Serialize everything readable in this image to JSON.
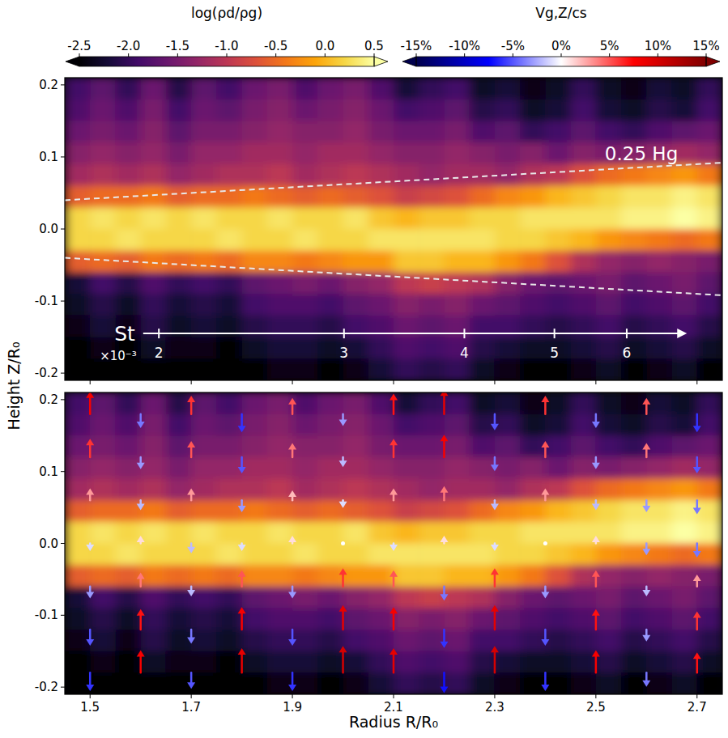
{
  "chart_data": {
    "type": "heatmap",
    "x_label": "Radius R/R₀",
    "y_label": "Height Z/R₀",
    "xlim": [
      1.45,
      2.75
    ],
    "ylim": [
      -0.21,
      0.21
    ],
    "xticks": [
      1.5,
      1.7,
      1.9,
      2.1,
      2.3,
      2.5,
      2.7
    ],
    "yticks": [
      -0.2,
      -0.1,
      {
        "value": 0,
        "label": "0.0"
      },
      0.1,
      0.2
    ],
    "x_edges": [
      1.45,
      1.5,
      1.55,
      1.6,
      1.65,
      1.7,
      1.75,
      1.8,
      1.85,
      1.9,
      1.95,
      2.0,
      2.05,
      2.1,
      2.15,
      2.2,
      2.25,
      2.3,
      2.35,
      2.4,
      2.45,
      2.5,
      2.55,
      2.6,
      2.65,
      2.7,
      2.75
    ],
    "z_edges": [
      0.21,
      0.18,
      0.15,
      0.12,
      0.09,
      0.06,
      0.03,
      0.0,
      -0.03,
      -0.06,
      -0.09,
      -0.12,
      -0.15,
      -0.18,
      -0.21
    ],
    "values": [
      [
        -1.9,
        -1.7,
        -2.0,
        -1.6,
        -2.1,
        -1.7,
        -1.9,
        -1.6,
        -1.5,
        -1.8,
        -1.6,
        -1.5,
        -1.8,
        -2.2,
        -2.0,
        -1.9,
        -2.3,
        -2.2,
        -2.4,
        -2.3,
        -2.0,
        -2.3,
        -2.4,
        -2.2,
        -2.3,
        -2.0
      ],
      [
        -1.8,
        -1.6,
        -1.8,
        -1.5,
        -1.9,
        -1.6,
        -1.7,
        -1.5,
        -1.4,
        -1.6,
        -1.5,
        -1.4,
        -1.6,
        -1.9,
        -1.8,
        -1.7,
        -2.1,
        -2.0,
        -2.3,
        -2.2,
        -1.9,
        -2.2,
        -2.3,
        -2.1,
        -2.2,
        -1.9
      ],
      [
        -1.6,
        -1.5,
        -1.6,
        -1.4,
        -1.7,
        -1.5,
        -1.5,
        -1.4,
        -1.3,
        -1.4,
        -1.4,
        -1.3,
        -1.5,
        -1.6,
        -1.6,
        -1.5,
        -1.8,
        -1.7,
        -2.0,
        -1.9,
        -1.7,
        -1.9,
        -2.0,
        -1.8,
        -1.7,
        -1.6
      ],
      [
        -1.4,
        -1.3,
        -1.4,
        -1.3,
        -1.5,
        -1.3,
        -1.3,
        -1.2,
        -1.2,
        -1.3,
        -1.2,
        -1.2,
        -1.3,
        -1.4,
        -1.4,
        -1.3,
        -1.4,
        -1.5,
        -1.4,
        -1.6,
        -1.4,
        -1.5,
        -1.4,
        -1.3,
        -1.2,
        -1.3
      ],
      [
        -1.2,
        -1.1,
        -1.2,
        -1.1,
        -1.3,
        -1.2,
        -1.1,
        -1.1,
        -1.0,
        -1.2,
        -1.1,
        -1.0,
        -1.1,
        -1.2,
        -1.3,
        -1.2,
        -1.2,
        -1.3,
        -1.1,
        -1.0,
        -0.7,
        -0.5,
        -0.4,
        -0.3,
        -0.2,
        -0.4
      ],
      [
        -0.6,
        -0.5,
        -0.5,
        -0.4,
        -0.6,
        -0.5,
        -0.5,
        -0.4,
        -0.5,
        -0.6,
        -0.5,
        -0.6,
        -0.7,
        -0.9,
        -0.8,
        -0.7,
        -0.5,
        -0.3,
        -0.2,
        0.0,
        0.1,
        0.2,
        0.3,
        0.3,
        0.4,
        0.3
      ],
      [
        0.2,
        0.3,
        0.2,
        0.3,
        0.2,
        0.3,
        0.2,
        0.2,
        0.3,
        0.2,
        0.2,
        0.3,
        0.1,
        0.0,
        0.1,
        0.1,
        0.2,
        0.2,
        0.3,
        0.3,
        0.3,
        0.3,
        0.4,
        0.4,
        0.5,
        0.4
      ],
      [
        0.2,
        0.2,
        0.3,
        0.2,
        0.2,
        0.2,
        0.3,
        0.2,
        0.2,
        0.3,
        0.2,
        0.2,
        0.3,
        0.3,
        0.3,
        0.3,
        0.3,
        0.2,
        0.2,
        0.1,
        0.0,
        -0.2,
        -0.3,
        -0.4,
        -0.5,
        -0.4
      ],
      [
        -0.6,
        -0.5,
        -0.6,
        -0.4,
        -0.5,
        -0.4,
        -0.5,
        -0.3,
        -0.3,
        -0.4,
        -0.3,
        -0.2,
        -0.2,
        0.1,
        0.1,
        0.0,
        0.0,
        -0.2,
        -0.4,
        -0.7,
        -1.1,
        -1.3,
        -1.4,
        -1.3,
        -1.4,
        -1.5
      ],
      [
        -2.2,
        -1.9,
        -2.1,
        -1.8,
        -2.0,
        -1.9,
        -2.0,
        -1.7,
        -1.6,
        -1.5,
        -1.6,
        -1.4,
        -1.3,
        -1.0,
        -0.9,
        -1.0,
        -1.1,
        -1.4,
        -1.6,
        -1.7,
        -1.6,
        -1.5,
        -1.7,
        -1.6,
        -1.5,
        -1.7
      ],
      [
        -2.3,
        -2.1,
        -2.3,
        -2.0,
        -2.2,
        -2.1,
        -2.2,
        -1.9,
        -1.8,
        -1.8,
        -1.9,
        -1.7,
        -1.6,
        -1.4,
        -1.5,
        -1.4,
        -1.6,
        -1.7,
        -1.8,
        -1.9,
        -1.8,
        -1.7,
        -1.9,
        -1.8,
        -1.7,
        -1.9
      ],
      [
        -2.4,
        -2.2,
        -2.4,
        -2.1,
        -2.3,
        -2.2,
        -2.3,
        -2.1,
        -2.0,
        -2.0,
        -2.1,
        -1.9,
        -1.8,
        -1.6,
        -1.7,
        -1.6,
        -1.9,
        -1.9,
        -2.0,
        -2.1,
        -2.0,
        -1.9,
        -2.1,
        -2.0,
        -1.9,
        -2.1
      ],
      [
        -2.5,
        -2.4,
        -2.5,
        -2.3,
        -2.4,
        -2.4,
        -2.5,
        -2.3,
        -2.2,
        -2.2,
        -2.3,
        -2.2,
        -2.0,
        -1.8,
        -1.9,
        -1.8,
        -2.1,
        -2.2,
        -2.3,
        -2.3,
        -2.2,
        -2.1,
        -2.3,
        -2.2,
        -2.1,
        -2.3
      ],
      [
        -2.6,
        -2.5,
        -2.6,
        -2.5,
        -2.6,
        -2.5,
        -2.6,
        -2.5,
        -2.4,
        -2.4,
        -2.5,
        -2.4,
        -2.2,
        -2.0,
        -2.1,
        -2.0,
        -2.3,
        -2.4,
        -2.5,
        -2.5,
        -2.4,
        -2.3,
        -2.5,
        -2.4,
        -2.3,
        -2.5
      ]
    ],
    "colorbar": {
      "label": "log(ρd/ρg)",
      "color": "inferno",
      "range": [
        -2.5,
        0.5
      ],
      "ticks": [
        -2.5,
        {
          "value": -2,
          "label": "-2.0"
        },
        -1.5,
        {
          "value": -1,
          "label": "-1.0"
        },
        -0.5,
        {
          "value": 0,
          "label": "0.0"
        },
        0.5
      ]
    },
    "velocity": {
      "x": [
        1.5,
        1.6,
        1.7,
        1.8,
        1.9,
        2.0,
        2.1,
        2.2,
        2.3,
        2.4,
        2.5,
        2.6,
        2.7
      ],
      "z": [
        0.18,
        0.12,
        0.06,
        0.0,
        -0.06,
        -0.12,
        -0.18
      ],
      "values": [
        [
          8,
          -4,
          6,
          -6,
          5,
          -3,
          7,
          9,
          -5,
          6,
          -4,
          5,
          -6
        ],
        [
          6,
          -3,
          5,
          -5,
          4,
          -2,
          6,
          8,
          -4,
          5,
          -3,
          4,
          -5
        ],
        [
          3,
          -2,
          3,
          -3,
          2,
          -1,
          3,
          4,
          -2,
          3,
          -2,
          -3,
          -4
        ],
        [
          -1,
          1,
          -2,
          -1,
          1,
          0,
          -1,
          1,
          -1,
          0,
          1,
          -3,
          -4
        ],
        [
          -3,
          4,
          -2,
          5,
          -3,
          6,
          5,
          -4,
          6,
          -3,
          5,
          -2,
          3
        ],
        [
          -5,
          7,
          -4,
          8,
          -5,
          9,
          8,
          -6,
          9,
          -5,
          7,
          -3,
          6
        ],
        [
          -6,
          8,
          -5,
          9,
          -6,
          10,
          9,
          -7,
          10,
          -6,
          8,
          -4,
          7
        ]
      ],
      "colorbar": {
        "label": "Vg,Z/cs",
        "color": "seismic",
        "range": [
          -15,
          15
        ],
        "ticks": [
          {
            "value": -15,
            "label": "-15%"
          },
          {
            "value": -10,
            "label": "-10%"
          },
          {
            "value": -5,
            "label": "-5%"
          },
          {
            "value": 0,
            "label": "0%"
          },
          {
            "value": 5,
            "label": "5%"
          },
          {
            "value": 10,
            "label": "10%"
          },
          {
            "value": 15,
            "label": "15%"
          }
        ]
      }
    },
    "annotations": {
      "scale_height": {
        "label": "0.25 Hg",
        "x": [
          1.45,
          2.75
        ],
        "upper": [
          0.04,
          0.092
        ],
        "lower": [
          -0.04,
          -0.092
        ]
      },
      "stokes": {
        "label": "St",
        "multiplier": "×10⁻³",
        "start": 1.605,
        "end": 2.68,
        "z": -0.145,
        "ticks": [
          {
            "value": 2,
            "x": 1.636
          },
          {
            "value": 3,
            "x": 2.002
          },
          {
            "value": 4,
            "x": 2.24
          },
          {
            "value": 5,
            "x": 2.418
          },
          {
            "value": 6,
            "x": 2.561
          }
        ]
      }
    }
  }
}
